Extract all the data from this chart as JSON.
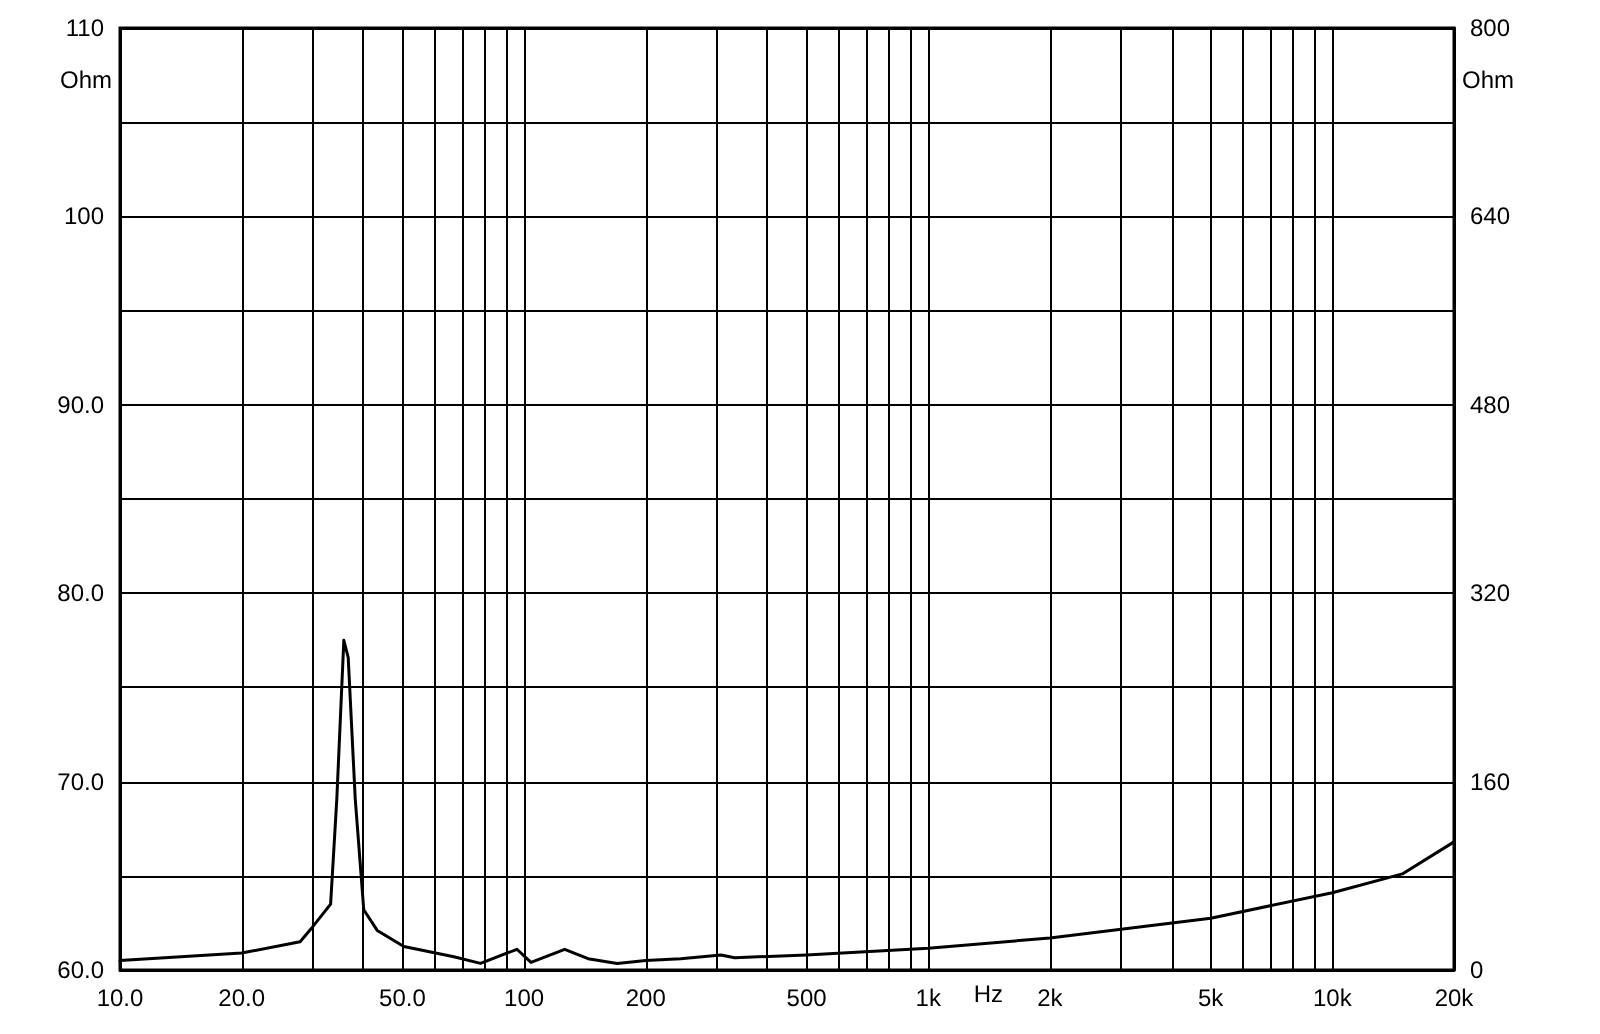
{
  "chart_data": {
    "type": "line",
    "xlabel": "Hz",
    "ylabel": "Ohm",
    "y2label": "Ohm",
    "x": [
      10,
      20,
      27.9,
      30,
      33.2,
      34.4,
      35.8,
      36.7,
      38.2,
      40.1,
      43.3,
      50.4,
      67,
      78,
      96,
      104,
      126,
      144,
      170,
      200,
      244,
      307,
      332,
      500,
      1000,
      2000,
      5000,
      10000,
      14900,
      20000
    ],
    "series": [
      {
        "color": "#000000",
        "values": [
          60.5,
          60.9,
          61.5,
          62.3,
          63.5,
          69.1,
          77.5,
          76.6,
          69.1,
          63.2,
          62.1,
          61.25,
          60.7,
          60.35,
          61.1,
          60.4,
          61.1,
          60.6,
          60.35,
          60.5,
          60.6,
          60.8,
          60.65,
          60.8,
          61.15,
          61.7,
          62.75,
          64.1,
          65.1,
          66.8
        ]
      }
    ],
    "log": "x",
    "grid": true,
    "marker": "none",
    "line_style": "solid",
    "xlim": [
      10,
      20000
    ],
    "xticks": [
      {
        "value": 10,
        "label": "10.0"
      },
      {
        "value": 20,
        "label": "20.0"
      },
      {
        "value": 30,
        "label": null
      },
      {
        "value": 40,
        "label": null
      },
      {
        "value": 50,
        "label": "50.0"
      },
      {
        "value": 60,
        "label": null
      },
      {
        "value": 70,
        "label": null
      },
      {
        "value": 80,
        "label": null
      },
      {
        "value": 90,
        "label": null
      },
      100,
      200,
      {
        "value": 300,
        "label": null
      },
      {
        "value": 400,
        "label": null
      },
      500,
      {
        "value": 600,
        "label": null
      },
      {
        "value": 700,
        "label": null
      },
      {
        "value": 800,
        "label": null
      },
      {
        "value": 900,
        "label": null
      },
      {
        "value": 1000,
        "label": "1k"
      },
      {
        "value": 2000,
        "label": "2k"
      },
      {
        "value": 3000,
        "label": null
      },
      {
        "value": 4000,
        "label": null
      },
      {
        "value": 5000,
        "label": "5k"
      },
      {
        "value": 6000,
        "label": null
      },
      {
        "value": 7000,
        "label": null
      },
      {
        "value": 8000,
        "label": null
      },
      {
        "value": 9000,
        "label": null
      },
      {
        "value": 10000,
        "label": "10k"
      },
      {
        "value": 20000,
        "label": "20k"
      }
    ],
    "ylim": [
      60,
      110
    ],
    "yticks": [
      {
        "value": 60,
        "label": "60.0"
      },
      {
        "value": 65,
        "label": null
      },
      {
        "value": 70,
        "label": "70.0"
      },
      {
        "value": 75,
        "label": null
      },
      {
        "value": 80,
        "label": "80.0"
      },
      {
        "value": 85,
        "label": null
      },
      {
        "value": 90,
        "label": "90.0"
      },
      {
        "value": 95,
        "label": null
      },
      100,
      {
        "value": 105,
        "label": null
      },
      110
    ],
    "y2lim": [
      0,
      800
    ],
    "y2ticks": [
      0,
      160,
      320,
      480,
      640,
      800
    ]
  }
}
